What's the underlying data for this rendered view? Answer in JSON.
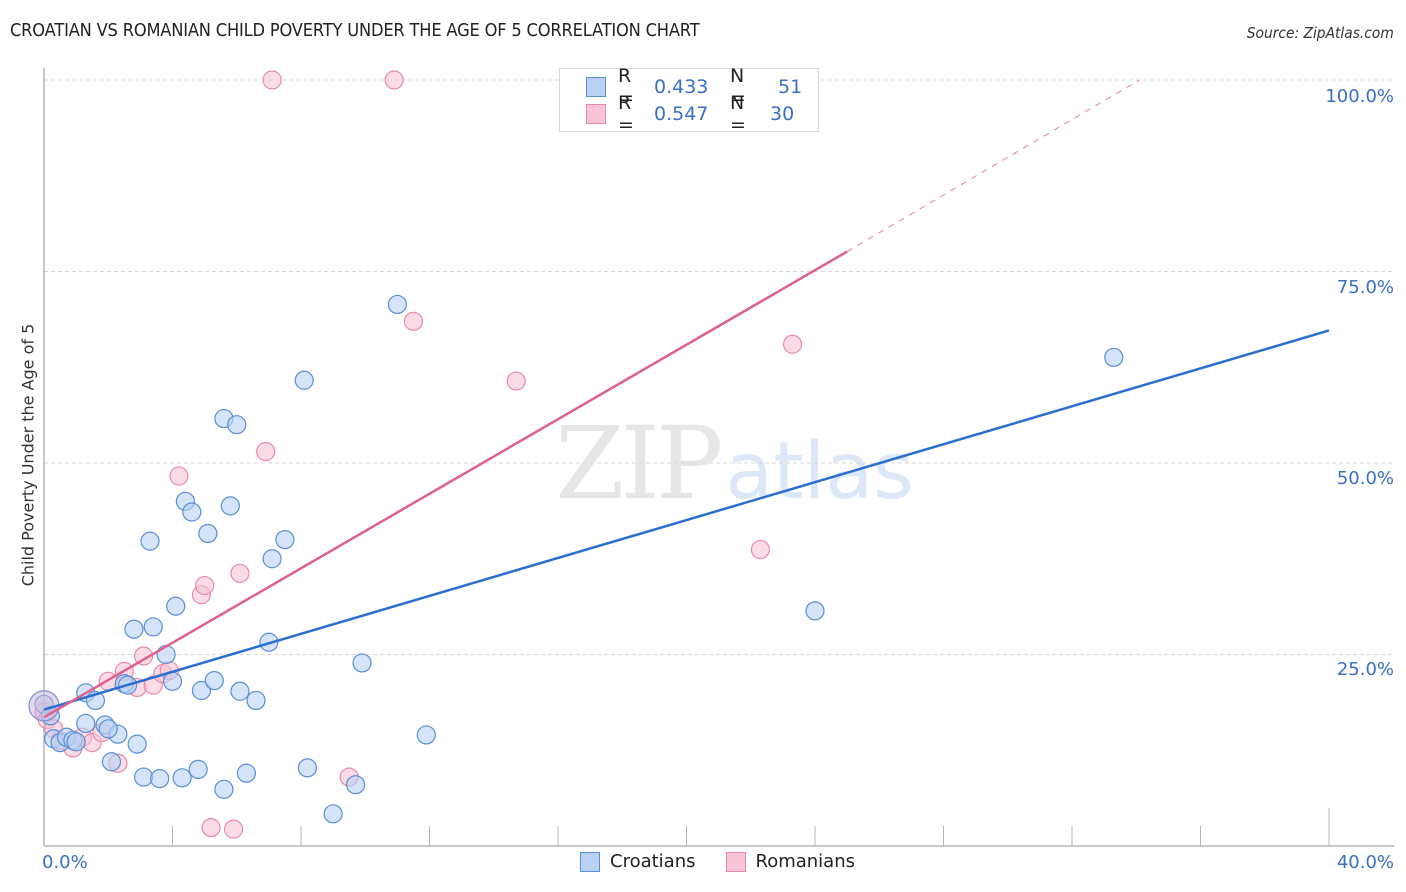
{
  "header": {
    "title": "CROATIAN VS ROMANIAN CHILD POVERTY UNDER THE AGE OF 5 CORRELATION CHART",
    "source": "Source: ZipAtlas.com"
  },
  "axes": {
    "ylabel": "Child Poverty Under the Age of 5",
    "y_ticks": [
      "100.0%",
      "75.0%",
      "50.0%",
      "25.0%"
    ],
    "x_min_label": "0.0%",
    "x_max_label": "40.0%"
  },
  "legend_top": {
    "rows": [
      {
        "r_label": "R =",
        "r_value": "0.433",
        "n_label": "N =",
        "n_value": "51"
      },
      {
        "r_label": "R =",
        "r_value": "0.547",
        "n_label": "N =",
        "n_value": "30"
      }
    ]
  },
  "legend_bottom": {
    "items": [
      {
        "label": "Croatians"
      },
      {
        "label": "Romanians"
      }
    ]
  },
  "watermark": {
    "zip": "ZIP",
    "atlas": "atlas"
  },
  "colors": {
    "croatians_fill": "#b9d2f3",
    "croatians_stroke": "#5a8ed8",
    "croatians_line": "#2a6fd0",
    "romanians_fill": "#f9c5d5",
    "romanians_stroke": "#e88aa8",
    "romanians_line": "#e0608a",
    "tick_label": "#3a6fc6"
  },
  "chart_data": {
    "type": "scatter",
    "title": "CROATIAN VS ROMANIAN CHILD POVERTY UNDER THE AGE OF 5 CORRELATION CHART",
    "xlabel": "",
    "ylabel": "Child Poverty Under the Age of 5",
    "xlim": [
      0,
      40
    ],
    "ylim": [
      0,
      100
    ],
    "x_unit": "%",
    "y_unit": "%",
    "grid": {
      "y": true,
      "x": false,
      "style": "dashed"
    },
    "legend_position": "top-center and bottom",
    "series": [
      {
        "name": "Croatians",
        "R": 0.433,
        "N": 51,
        "trendline": {
          "x": [
            0,
            40
          ],
          "y": [
            17.8,
            67.3
          ]
        },
        "points": [
          [
            0.0,
            18.5
          ],
          [
            0.3,
            14.0
          ],
          [
            0.5,
            13.5
          ],
          [
            0.7,
            14.2
          ],
          [
            0.9,
            13.8
          ],
          [
            1.3,
            20.0
          ],
          [
            1.3,
            16.0
          ],
          [
            1.6,
            19.0
          ],
          [
            1.9,
            15.8
          ],
          [
            2.3,
            14.6
          ],
          [
            2.1,
            11.0
          ],
          [
            2.5,
            21.2
          ],
          [
            2.6,
            21.0
          ],
          [
            2.8,
            28.3
          ],
          [
            2.9,
            13.3
          ],
          [
            3.1,
            9.0
          ],
          [
            3.3,
            39.8
          ],
          [
            3.4,
            28.6
          ],
          [
            3.6,
            8.8
          ],
          [
            3.8,
            25.0
          ],
          [
            4.0,
            21.5
          ],
          [
            4.1,
            31.3
          ],
          [
            4.3,
            8.9
          ],
          [
            4.4,
            45.0
          ],
          [
            4.6,
            43.6
          ],
          [
            4.8,
            10.0
          ],
          [
            4.9,
            20.3
          ],
          [
            5.1,
            40.8
          ],
          [
            5.3,
            21.6
          ],
          [
            5.6,
            7.4
          ],
          [
            5.6,
            55.8
          ],
          [
            5.8,
            44.4
          ],
          [
            6.0,
            55.0
          ],
          [
            6.1,
            20.2
          ],
          [
            6.3,
            9.5
          ],
          [
            6.6,
            19.0
          ],
          [
            7.0,
            26.6
          ],
          [
            7.1,
            37.5
          ],
          [
            7.5,
            40.0
          ],
          [
            8.1,
            60.8
          ],
          [
            8.2,
            10.2
          ],
          [
            9.0,
            4.2
          ],
          [
            9.7,
            8.0
          ],
          [
            9.9,
            23.9
          ],
          [
            11.0,
            70.7
          ],
          [
            11.9,
            14.5
          ],
          [
            24.0,
            30.7
          ],
          [
            33.3,
            63.8
          ],
          [
            0.2,
            17.0
          ],
          [
            1.0,
            13.6
          ],
          [
            2.0,
            15.3
          ]
        ]
      },
      {
        "name": "Romanians",
        "R": 0.547,
        "N": 30,
        "trendline": {
          "x": [
            0,
            25.0
          ],
          "y": [
            16.8,
            77.6
          ],
          "dashed_extension": {
            "x": [
              25.0,
              34.1
            ],
            "y": [
              77.6,
              100
            ]
          }
        },
        "points": [
          [
            0.0,
            17.5
          ],
          [
            0.1,
            16.5
          ],
          [
            0.3,
            15.3
          ],
          [
            0.5,
            13.8
          ],
          [
            0.9,
            12.8
          ],
          [
            1.2,
            14.2
          ],
          [
            1.5,
            13.5
          ],
          [
            1.8,
            14.8
          ],
          [
            2.0,
            21.5
          ],
          [
            2.3,
            10.8
          ],
          [
            2.5,
            22.8
          ],
          [
            2.9,
            20.7
          ],
          [
            3.1,
            24.8
          ],
          [
            3.4,
            21.0
          ],
          [
            3.7,
            22.5
          ],
          [
            3.9,
            22.9
          ],
          [
            4.2,
            48.3
          ],
          [
            4.9,
            32.8
          ],
          [
            5.0,
            34.0
          ],
          [
            5.2,
            2.4
          ],
          [
            5.9,
            2.2
          ],
          [
            6.1,
            35.6
          ],
          [
            6.9,
            51.5
          ],
          [
            7.1,
            100.0
          ],
          [
            9.5,
            9.0
          ],
          [
            10.9,
            100.0
          ],
          [
            11.5,
            68.5
          ],
          [
            14.7,
            60.7
          ],
          [
            22.3,
            38.7
          ],
          [
            23.3,
            65.5
          ]
        ]
      }
    ]
  }
}
